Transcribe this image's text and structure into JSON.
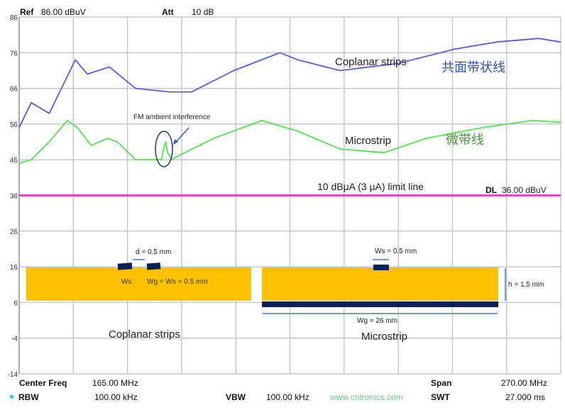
{
  "header": {
    "ref_label": "Ref",
    "ref_value": "86.00 dBuV",
    "att_label": "Att",
    "att_value": "10 dB"
  },
  "footer": {
    "center_label": "Center Freq",
    "center_value": "165.00 MHz",
    "span_label": "Span",
    "span_value": "270.00 MHz",
    "rbw_label": "RBW",
    "rbw_value": "100.00 kHz",
    "vbw_label": "VBW",
    "vbw_value": "100.00 kHz",
    "swt_label": "SWT",
    "swt_value": "27.000 ms",
    "watermark": "www.cntronics.com"
  },
  "chart_data": {
    "type": "line",
    "xlim": [
      30,
      300
    ],
    "ylim": [
      -14,
      86
    ],
    "yticks": [
      86,
      76,
      66,
      56,
      46,
      36,
      26,
      16,
      6,
      -4,
      -14
    ],
    "grid": true,
    "series": [
      {
        "name": "Coplanar strips",
        "name_cn": "共面带状线",
        "color": "#5a5ae6",
        "x": [
          30,
          36,
          45,
          58,
          64,
          75,
          88,
          105,
          116,
          137,
          160,
          169,
          190,
          219,
          247,
          268,
          289,
          300
        ],
        "y": [
          55,
          62,
          59,
          74,
          70,
          72,
          66,
          65,
          65,
          71,
          76,
          74,
          71,
          73,
          77,
          79,
          80,
          79
        ]
      },
      {
        "name": "Microstrip",
        "name_cn": "微带线",
        "color": "#55e055",
        "x": [
          30,
          36,
          45,
          54,
          59,
          66,
          74,
          79,
          88,
          98,
          101,
          102,
          103,
          104,
          106,
          109,
          127,
          151,
          169,
          190,
          212,
          233,
          261,
          286,
          300
        ],
        "y": [
          45,
          46,
          51,
          57,
          55,
          50,
          52,
          51,
          46,
          46,
          46,
          49,
          51,
          48,
          46,
          47,
          52,
          57,
          54,
          49,
          48,
          52,
          55,
          57,
          56.5
        ]
      }
    ],
    "limit_line": {
      "value": 36,
      "color": "#e020e0",
      "label": "10 dBμA (3 μA) limit line",
      "dl_label": "DL",
      "dl_value": "36.00 dBuV"
    },
    "annotations": {
      "fm": "FM ambient interference",
      "d": "d = 0.5 mm",
      "ws": "Ws",
      "wg_eq": "Wg = Ws = 0.5 mm",
      "ws_micro": "Ws = 0.5 mm",
      "h": "h = 1.5 mm",
      "wg_micro": "Wg = 26 mm",
      "coplanar_caption": "Coplanar strips",
      "microstrip_caption": "Microstrip"
    },
    "colors": {
      "substrate": "#ffc000",
      "conductor": "#0a1f5c",
      "dimension": "#4a7ac8"
    }
  }
}
